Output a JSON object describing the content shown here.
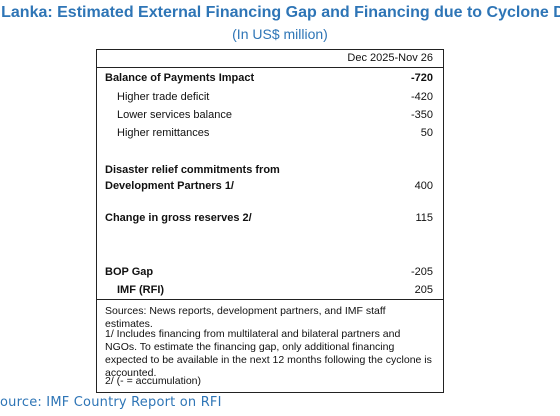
{
  "title": "ri Lanka: Estimated External Financing Gap and Financing due to Cyclone Ditwah",
  "subtitle": "(In US$ million)",
  "table": {
    "column_header": "Dec 2025-Nov 26",
    "rows": [
      {
        "label": "Balance of Payments Impact",
        "value": "-720",
        "bold": true
      },
      {
        "label": "Higher trade deficit",
        "value": "-420"
      },
      {
        "label": "Lower services balance",
        "value": "-350"
      },
      {
        "label": "Higher remittances",
        "value": "50"
      },
      {
        "label": "Disaster relief commitments from",
        "label2": "Development Partners 1/",
        "value": "400",
        "bold": true
      },
      {
        "label": "Change in gross reserves 2/",
        "value": "115",
        "bold": true
      },
      {
        "label": "BOP Gap",
        "value": "-205",
        "bold": true
      },
      {
        "label": "IMF (RFI)",
        "value": "205",
        "bold": true
      }
    ]
  },
  "notes": {
    "sources": "Sources: News reports, development partners, and IMF staff estimates.",
    "note1": "1/ Includes financing from multilateral and bilateral partners and NGOs. To estimate the financing gap, only additional financing expected to be available in the next 12 months following the cyclone is accounted.",
    "note2": "2/ (- = accumulation)"
  },
  "source": "ource: IMF Country Report on RFI"
}
